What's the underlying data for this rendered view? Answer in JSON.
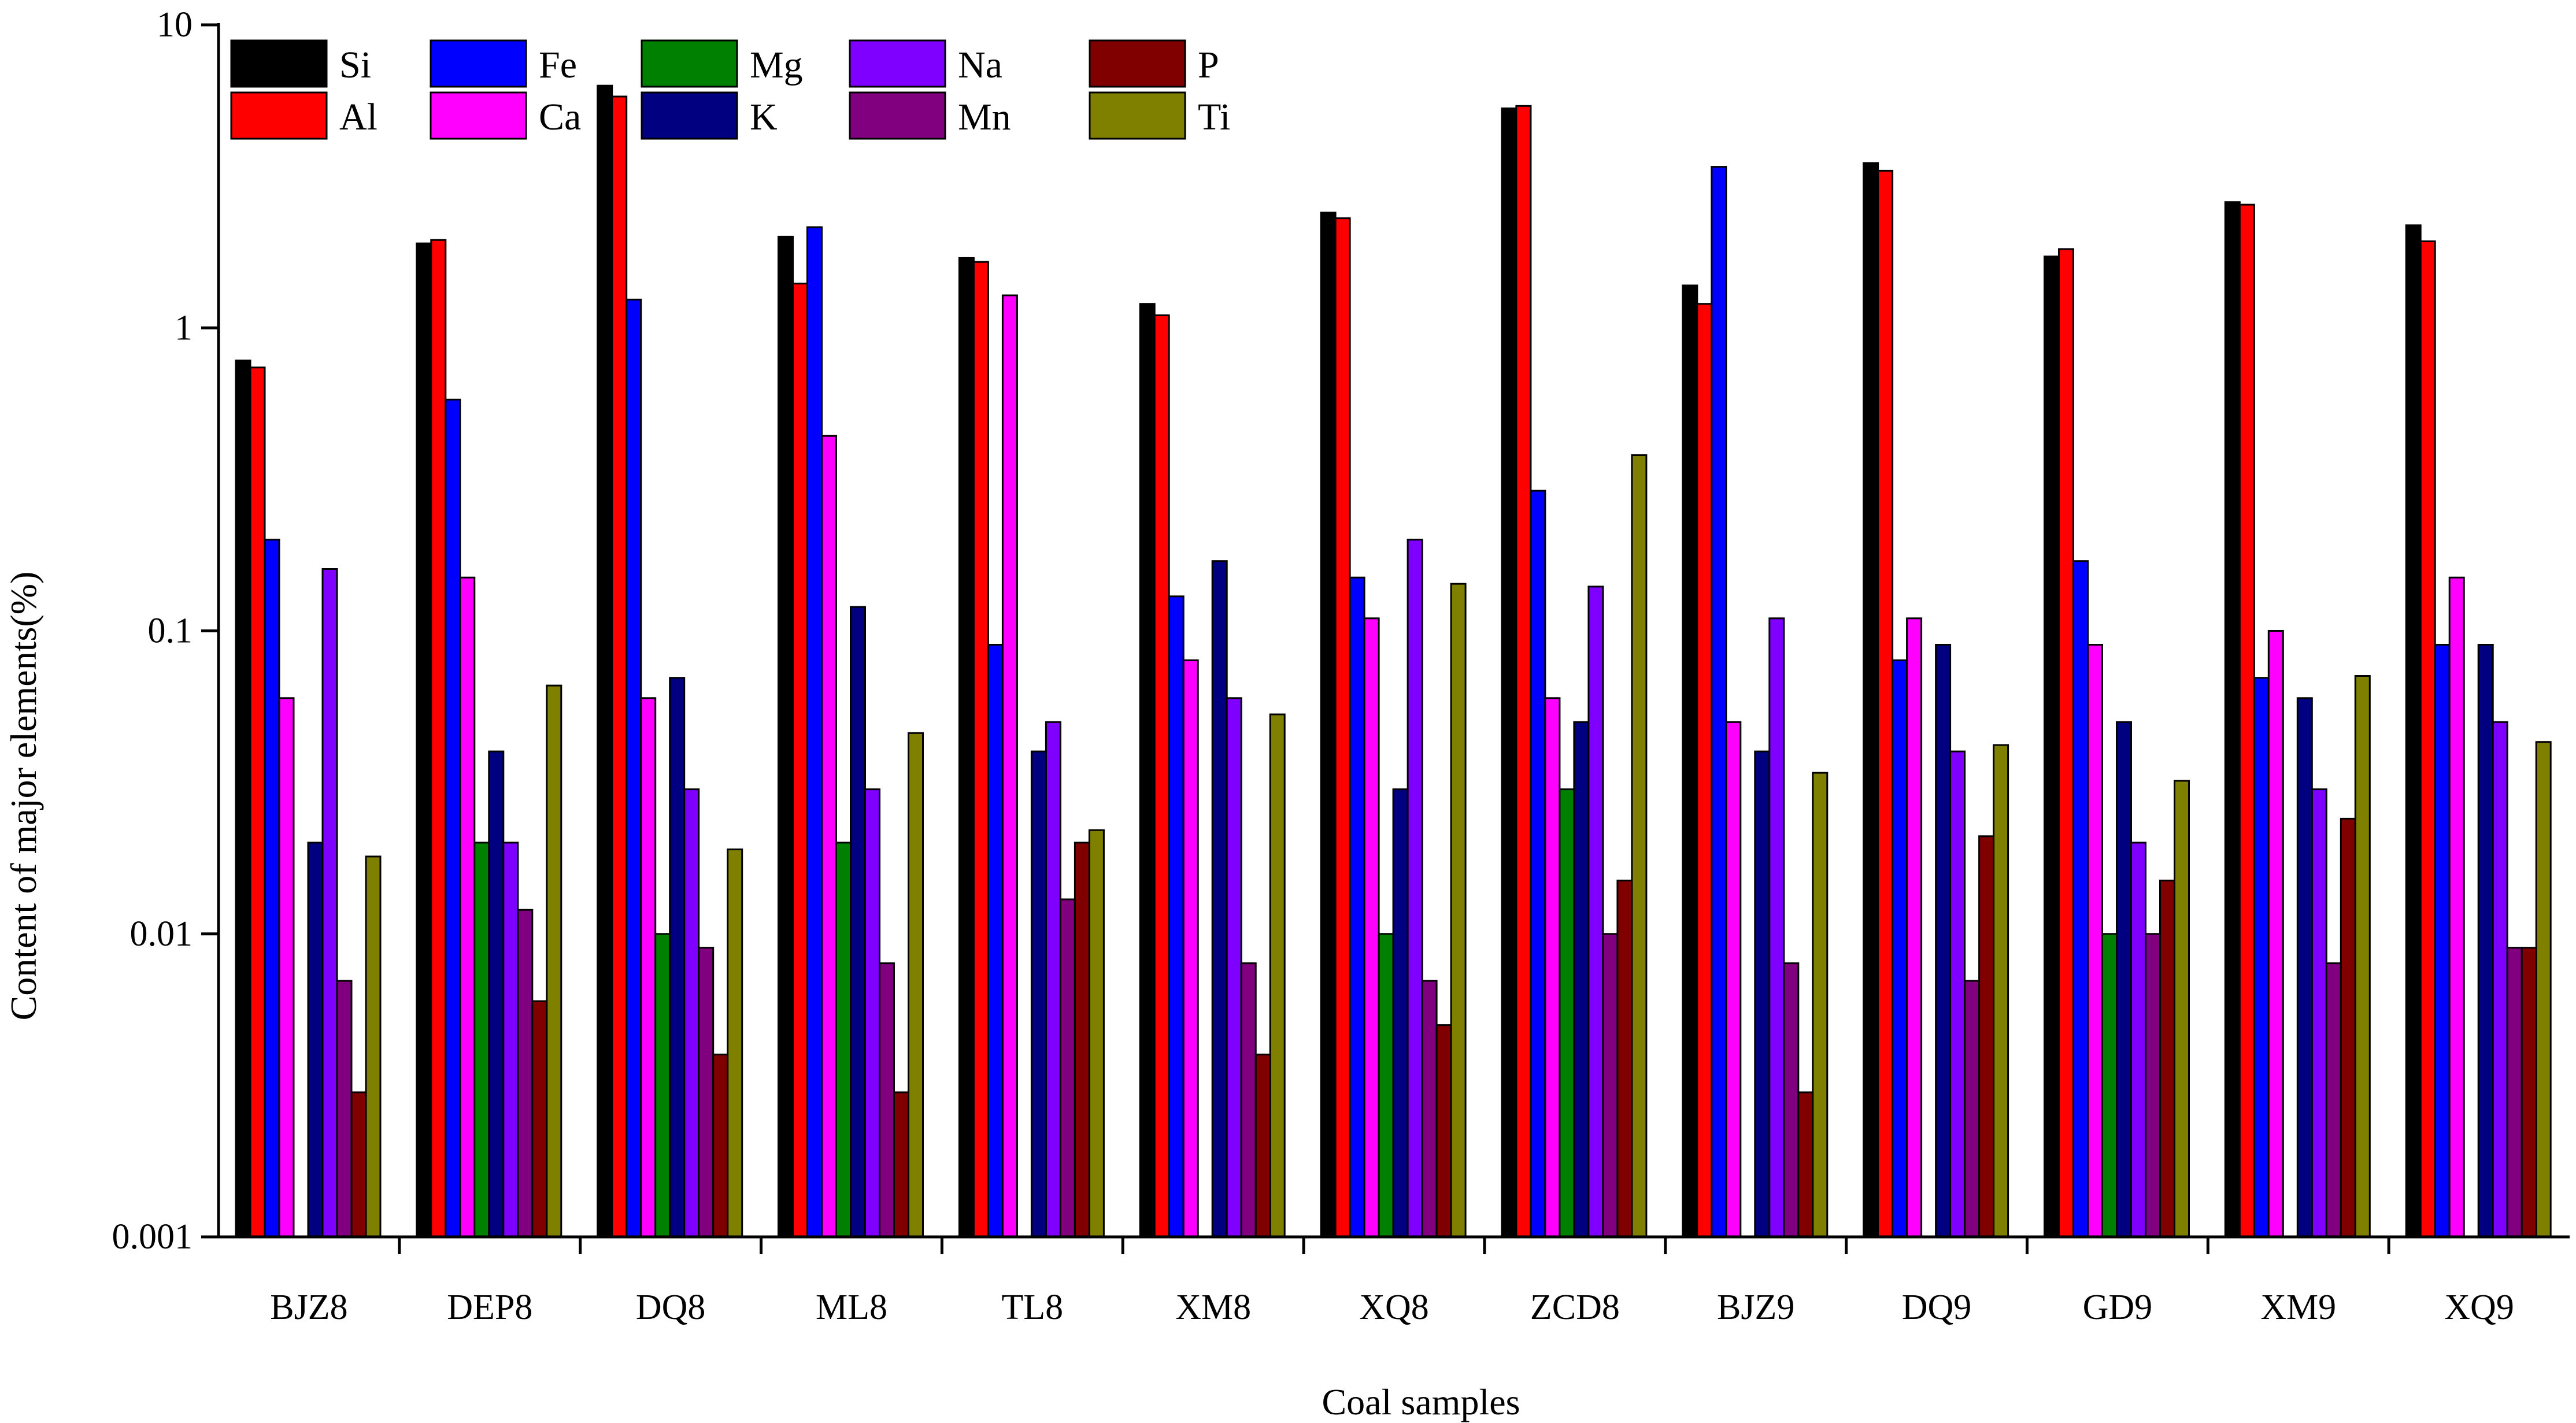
{
  "chart_data": {
    "type": "bar",
    "scale": "log",
    "title": "",
    "xlabel": "Coal samples",
    "ylabel": "Content of major elements(%)",
    "ylim": [
      0.001,
      10
    ],
    "y_ticks": [
      {
        "value": 0.001,
        "label": "0.001"
      },
      {
        "value": 0.01,
        "label": "0.01"
      },
      {
        "value": 0.1,
        "label": "0.1"
      },
      {
        "value": 1,
        "label": "1"
      },
      {
        "value": 10,
        "label": "10"
      }
    ],
    "categories": [
      "BJZ8",
      "DEP8",
      "DQ8",
      "ML8",
      "TL8",
      "XM8",
      "XQ8",
      "ZCD8",
      "BJZ9",
      "DQ9",
      "GD9",
      "XM9",
      "XQ9"
    ],
    "legend_position": "top-left",
    "series": [
      {
        "name": "Si",
        "color": "#000000",
        "values": [
          0.78,
          1.9,
          6.3,
          2.0,
          1.7,
          1.2,
          2.4,
          5.3,
          1.38,
          3.5,
          1.72,
          2.6,
          2.18
        ]
      },
      {
        "name": "Al",
        "color": "#ff0000",
        "values": [
          0.74,
          1.95,
          5.8,
          1.4,
          1.65,
          1.1,
          2.3,
          5.4,
          1.2,
          3.3,
          1.82,
          2.55,
          1.93
        ]
      },
      {
        "name": "Fe",
        "color": "#0000ff",
        "values": [
          0.2,
          0.58,
          1.24,
          2.15,
          0.09,
          0.13,
          0.15,
          0.29,
          3.4,
          0.08,
          0.17,
          0.07,
          0.09
        ]
      },
      {
        "name": "Ca",
        "color": "#ff00ff",
        "values": [
          0.06,
          0.15,
          0.06,
          0.44,
          1.28,
          0.08,
          0.11,
          0.06,
          0.05,
          0.11,
          0.09,
          0.1,
          0.15
        ]
      },
      {
        "name": "Mg",
        "color": "#008000",
        "values": [
          null,
          0.02,
          0.01,
          0.02,
          null,
          null,
          0.01,
          0.03,
          null,
          null,
          0.01,
          null,
          null
        ]
      },
      {
        "name": "K",
        "color": "#000080",
        "values": [
          0.02,
          0.04,
          0.07,
          0.12,
          0.04,
          0.17,
          0.03,
          0.05,
          0.04,
          0.09,
          0.05,
          0.06,
          0.09
        ]
      },
      {
        "name": "Na",
        "color": "#8000ff",
        "values": [
          0.16,
          0.02,
          0.03,
          0.03,
          0.05,
          0.06,
          0.2,
          0.14,
          0.11,
          0.04,
          0.02,
          0.03,
          0.05
        ]
      },
      {
        "name": "Mn",
        "color": "#800080",
        "values": [
          0.007,
          0.012,
          0.009,
          0.008,
          0.013,
          0.008,
          0.007,
          0.01,
          0.008,
          0.007,
          0.01,
          0.008,
          0.009
        ]
      },
      {
        "name": "P",
        "color": "#800000",
        "values": [
          0.003,
          0.006,
          0.004,
          0.003,
          0.02,
          0.004,
          0.005,
          0.015,
          0.003,
          0.021,
          0.015,
          0.024,
          0.009
        ]
      },
      {
        "name": "Ti",
        "color": "#808000",
        "values": [
          0.018,
          0.066,
          0.019,
          0.046,
          0.022,
          0.053,
          0.143,
          0.38,
          0.034,
          0.042,
          0.032,
          0.071,
          0.043
        ]
      }
    ],
    "legend_order": [
      "Si",
      "Fe",
      "Mg",
      "Na",
      "P",
      "Al",
      "Ca",
      "K",
      "Mn",
      "Ti"
    ]
  }
}
